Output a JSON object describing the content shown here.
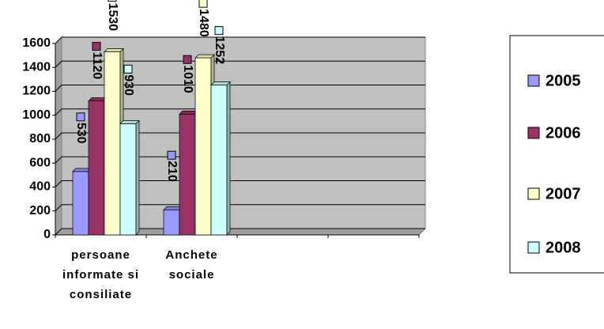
{
  "chart_data": {
    "type": "bar",
    "categories": [
      "persoane informate si consiliate",
      "Anchete sociale",
      null,
      null
    ],
    "series": [
      {
        "name": "2005",
        "color": "#9999ff",
        "values": [
          530,
          210,
          null,
          null
        ]
      },
      {
        "name": "2006",
        "color": "#993366",
        "values": [
          1120,
          1010,
          null,
          null
        ]
      },
      {
        "name": "2007",
        "color": "#ffffcc",
        "values": [
          1530,
          1480,
          null,
          null
        ]
      },
      {
        "name": "2008",
        "color": "#ccffff",
        "values": [
          930,
          1252,
          null,
          null
        ]
      }
    ],
    "ylim": [
      0,
      1600
    ],
    "yticks": [
      0,
      200,
      400,
      600,
      800,
      1000,
      1200,
      1400,
      1600
    ],
    "grid": true,
    "legend": "right"
  }
}
